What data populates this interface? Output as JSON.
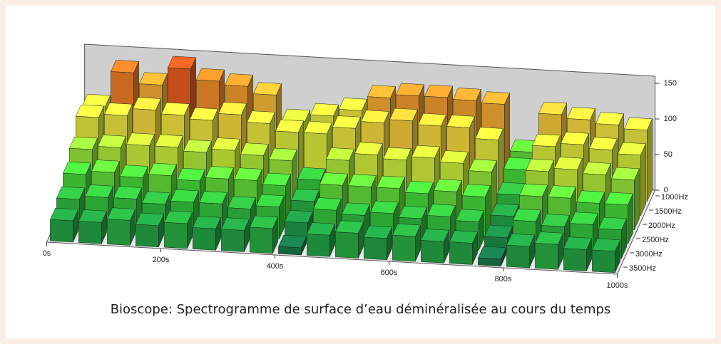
{
  "chart_data": {
    "type": "surface3d",
    "title": "Bioscope: Spectrogramme de surface d’eau déminéralisée au cours du temps",
    "x": [
      25,
      75,
      125,
      175,
      225,
      275,
      325,
      375,
      425,
      475,
      525,
      575,
      625,
      675,
      725,
      775,
      825,
      875,
      925,
      975
    ],
    "xlim": [
      0,
      1000
    ],
    "xticks": [
      {
        "value": 0,
        "label": "0s"
      },
      {
        "value": 200,
        "label": "200s"
      },
      {
        "value": 400,
        "label": "400s"
      },
      {
        "value": 600,
        "label": "600s"
      },
      {
        "value": 800,
        "label": "800s"
      },
      {
        "value": 1000,
        "label": "1000s"
      }
    ],
    "ylim": [
      1000,
      3500
    ],
    "yticks": [
      {
        "value": 1000,
        "label": "1000Hz"
      },
      {
        "value": 1500,
        "label": "1500Hz"
      },
      {
        "value": 2000,
        "label": "2000Hz"
      },
      {
        "value": 2500,
        "label": "2500Hz"
      },
      {
        "value": 3000,
        "label": "3000Hz"
      },
      {
        "value": 3500,
        "label": "3500Hz"
      }
    ],
    "zlim": [
      0,
      160
    ],
    "zticks": [
      0,
      50,
      100,
      150
    ],
    "colormap": [
      "#14604a",
      "#1f9a45",
      "#3ed43a",
      "#c8ec3a",
      "#f2e040",
      "#f0902a",
      "#e03a18"
    ],
    "series": [
      {
        "freq": 1000,
        "values": [
          90,
          140,
          125,
          150,
          135,
          130,
          120,
          85,
          95,
          105,
          125,
          130,
          130,
          128,
          125,
          60,
          115,
          110,
          105,
          100
        ]
      },
      {
        "freq": 1500,
        "values": [
          95,
          100,
          110,
          105,
          100,
          110,
          100,
          90,
          90,
          100,
          110,
          115,
          110,
          110,
          95,
          55,
          90,
          95,
          90,
          85
        ]
      },
      {
        "freq": 2000,
        "values": [
          70,
          75,
          80,
          80,
          75,
          80,
          75,
          70,
          45,
          75,
          85,
          80,
          85,
          80,
          70,
          40,
          75,
          80,
          75,
          70
        ]
      },
      {
        "freq": 2500,
        "values": [
          55,
          60,
          55,
          60,
          55,
          60,
          60,
          55,
          35,
          60,
          60,
          60,
          55,
          60,
          55,
          30,
          60,
          60,
          55,
          55
        ]
      },
      {
        "freq": 3000,
        "values": [
          40,
          45,
          45,
          40,
          45,
          45,
          40,
          45,
          25,
          45,
          40,
          45,
          40,
          45,
          40,
          20,
          45,
          40,
          45,
          40
        ]
      },
      {
        "freq": 3500,
        "values": [
          30,
          30,
          35,
          30,
          35,
          30,
          30,
          35,
          10,
          30,
          35,
          30,
          35,
          30,
          30,
          10,
          30,
          35,
          30,
          30
        ]
      }
    ]
  }
}
